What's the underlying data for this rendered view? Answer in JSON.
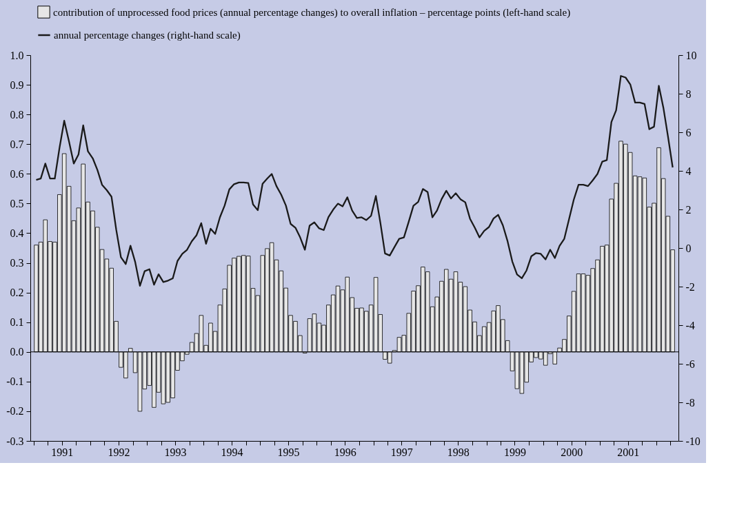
{
  "chart_data": {
    "type": "bar",
    "x": [
      "1991-01",
      "1991-02",
      "1991-03",
      "1991-04",
      "1991-05",
      "1991-06",
      "1991-07",
      "1991-08",
      "1991-09",
      "1991-10",
      "1991-11",
      "1991-12",
      "1992-01",
      "1992-02",
      "1992-03",
      "1992-04",
      "1992-05",
      "1992-06",
      "1992-07",
      "1992-08",
      "1992-09",
      "1992-10",
      "1992-11",
      "1992-12",
      "1993-01",
      "1993-02",
      "1993-03",
      "1993-04",
      "1993-05",
      "1993-06",
      "1993-07",
      "1993-08",
      "1993-09",
      "1993-10",
      "1993-11",
      "1993-12",
      "1994-01",
      "1994-02",
      "1994-03",
      "1994-04",
      "1994-05",
      "1994-06",
      "1994-07",
      "1994-08",
      "1994-09",
      "1994-10",
      "1994-11",
      "1994-12",
      "1995-01",
      "1995-02",
      "1995-03",
      "1995-04",
      "1995-05",
      "1995-06",
      "1995-07",
      "1995-08",
      "1995-09",
      "1995-10",
      "1995-11",
      "1995-12",
      "1996-01",
      "1996-02",
      "1996-03",
      "1996-04",
      "1996-05",
      "1996-06",
      "1996-07",
      "1996-08",
      "1996-09",
      "1996-10",
      "1996-11",
      "1996-12",
      "1997-01",
      "1997-02",
      "1997-03",
      "1997-04",
      "1997-05",
      "1997-06",
      "1997-07",
      "1997-08",
      "1997-09",
      "1997-10",
      "1997-11",
      "1997-12",
      "1998-01",
      "1998-02",
      "1998-03",
      "1998-04",
      "1998-05",
      "1998-06",
      "1998-07",
      "1998-08",
      "1998-09",
      "1998-10",
      "1998-11",
      "1998-12",
      "1999-01",
      "1999-02",
      "1999-03",
      "1999-04",
      "1999-05",
      "1999-06",
      "1999-07",
      "1999-08",
      "1999-09",
      "1999-10",
      "1999-11",
      "1999-12",
      "2000-01",
      "2000-02",
      "2000-03",
      "2000-04",
      "2000-05",
      "2000-06",
      "2000-07",
      "2000-08",
      "2000-09",
      "2000-10",
      "2000-11",
      "2000-12",
      "2001-01",
      "2001-02",
      "2001-03",
      "2001-04",
      "2001-05",
      "2001-06",
      "2001-07",
      "2001-08",
      "2001-09",
      "2001-10",
      "2001-11",
      "2001-12",
      "2002-01",
      "2002-02",
      "2002-03",
      "2002-04"
    ],
    "series": [
      {
        "name": "contribution of unprocessed food prices (annual percentage changes) to overall inflation – percentage points (left-hand scale)",
        "color": "#e6e6e6",
        "values": [
          0.36,
          0.37,
          0.445,
          0.372,
          0.37,
          0.53,
          0.668,
          0.558,
          0.442,
          0.485,
          0.633,
          0.505,
          0.475,
          0.42,
          0.345,
          0.313,
          0.282,
          0.103,
          -0.052,
          -0.088,
          0.012,
          -0.07,
          -0.2,
          -0.125,
          -0.113,
          -0.187,
          -0.136,
          -0.175,
          -0.17,
          -0.155,
          -0.062,
          -0.03,
          -0.008,
          0.032,
          0.062,
          0.123,
          0.022,
          0.097,
          0.069,
          0.158,
          0.212,
          0.292,
          0.316,
          0.322,
          0.325,
          0.323,
          0.214,
          0.19,
          0.325,
          0.348,
          0.368,
          0.31,
          0.273,
          0.215,
          0.123,
          0.103,
          0.055,
          -0.004,
          0.112,
          0.128,
          0.097,
          0.09,
          0.158,
          0.192,
          0.222,
          0.209,
          0.252,
          0.183,
          0.147,
          0.148,
          0.137,
          0.158,
          0.251,
          0.126,
          -0.025,
          -0.038,
          0.005,
          0.049,
          0.056,
          0.13,
          0.205,
          0.223,
          0.286,
          0.27,
          0.152,
          0.185,
          0.238,
          0.278,
          0.245,
          0.27,
          0.235,
          0.22,
          0.141,
          0.101,
          0.055,
          0.085,
          0.099,
          0.138,
          0.156,
          0.109,
          0.038,
          -0.064,
          -0.124,
          -0.14,
          -0.102,
          -0.034,
          -0.019,
          -0.024,
          -0.045,
          -0.006,
          -0.041,
          0.013,
          0.042,
          0.121,
          0.204,
          0.263,
          0.263,
          0.258,
          0.281,
          0.31,
          0.356,
          0.36,
          0.515,
          0.568,
          0.71,
          0.7,
          0.672,
          0.593,
          0.59,
          0.586,
          0.488,
          0.501,
          0.688,
          0.584,
          0.457,
          0.344
        ]
      },
      {
        "name": "annual percentage changes (right-hand scale)",
        "type": "line",
        "axis": "y2",
        "color": "#1a1a1a",
        "values": [
          3.53,
          3.6,
          4.38,
          3.6,
          3.6,
          5.19,
          6.6,
          5.52,
          4.38,
          4.85,
          6.36,
          5.01,
          4.65,
          4.05,
          3.28,
          3.0,
          2.66,
          0.95,
          -0.48,
          -0.83,
          0.12,
          -0.73,
          -1.96,
          -1.2,
          -1.1,
          -1.9,
          -1.36,
          -1.76,
          -1.69,
          -1.57,
          -0.67,
          -0.3,
          -0.09,
          0.35,
          0.66,
          1.29,
          0.22,
          1.0,
          0.73,
          1.59,
          2.2,
          3.04,
          3.31,
          3.4,
          3.4,
          3.37,
          2.26,
          1.96,
          3.33,
          3.6,
          3.84,
          3.21,
          2.77,
          2.2,
          1.25,
          1.05,
          0.55,
          -0.09,
          1.16,
          1.33,
          1.02,
          0.93,
          1.6,
          1.99,
          2.3,
          2.16,
          2.63,
          1.94,
          1.56,
          1.59,
          1.45,
          1.67,
          2.7,
          1.29,
          -0.28,
          -0.39,
          0.05,
          0.48,
          0.55,
          1.36,
          2.19,
          2.39,
          3.06,
          2.9,
          1.59,
          1.94,
          2.53,
          2.97,
          2.57,
          2.84,
          2.53,
          2.37,
          1.52,
          1.06,
          0.55,
          0.89,
          1.09,
          1.53,
          1.72,
          1.18,
          0.35,
          -0.7,
          -1.37,
          -1.57,
          -1.16,
          -0.43,
          -0.26,
          -0.3,
          -0.59,
          -0.09,
          -0.52,
          0.11,
          0.48,
          1.49,
          2.5,
          3.28,
          3.28,
          3.21,
          3.51,
          3.84,
          4.48,
          4.56,
          6.53,
          7.14,
          8.92,
          8.84,
          8.48,
          7.54,
          7.54,
          7.47,
          6.16,
          6.29,
          8.41,
          7.27,
          5.79,
          4.18
        ]
      }
    ],
    "xlim": [
      "1991-01-01",
      "2002-05-01"
    ],
    "xticks": [
      {
        "value": "1991-01",
        "label": null
      },
      {
        "value": "1991-04",
        "label": null
      },
      {
        "value": "1991-07",
        "label": "1991"
      },
      {
        "value": "1991-10",
        "label": null
      },
      {
        "value": "1992-01",
        "label": null
      },
      {
        "value": "1992-04",
        "label": null
      },
      {
        "value": "1992-07",
        "label": "1992"
      },
      {
        "value": "1992-10",
        "label": null
      },
      {
        "value": "1993-01",
        "label": null
      },
      {
        "value": "1993-04",
        "label": null
      },
      {
        "value": "1993-07",
        "label": "1993"
      },
      {
        "value": "1993-10",
        "label": null
      },
      {
        "value": "1994-01",
        "label": null
      },
      {
        "value": "1994-04",
        "label": null
      },
      {
        "value": "1994-07",
        "label": "1994"
      },
      {
        "value": "1994-10",
        "label": null
      },
      {
        "value": "1995-01",
        "label": null
      },
      {
        "value": "1995-04",
        "label": null
      },
      {
        "value": "1995-07",
        "label": "1995"
      },
      {
        "value": "1995-10",
        "label": null
      },
      {
        "value": "1996-01",
        "label": null
      },
      {
        "value": "1996-04",
        "label": null
      },
      {
        "value": "1996-07",
        "label": "1996"
      },
      {
        "value": "1996-10",
        "label": null
      },
      {
        "value": "1997-01",
        "label": null
      },
      {
        "value": "1997-04",
        "label": null
      },
      {
        "value": "1997-07",
        "label": "1997"
      },
      {
        "value": "1997-10",
        "label": null
      },
      {
        "value": "1998-01",
        "label": null
      },
      {
        "value": "1998-04",
        "label": null
      },
      {
        "value": "1998-07",
        "label": "1998"
      },
      {
        "value": "1998-10",
        "label": null
      },
      {
        "value": "1999-01",
        "label": null
      },
      {
        "value": "1999-04",
        "label": null
      },
      {
        "value": "1999-07",
        "label": "1999"
      },
      {
        "value": "1999-10",
        "label": null
      },
      {
        "value": "2000-01",
        "label": null
      },
      {
        "value": "2000-04",
        "label": null
      },
      {
        "value": "2000-07",
        "label": "2000"
      },
      {
        "value": "2000-10",
        "label": null
      },
      {
        "value": "2001-01",
        "label": null
      },
      {
        "value": "2001-04",
        "label": null
      },
      {
        "value": "2001-07",
        "label": "2001"
      },
      {
        "value": "2001-10",
        "label": null
      },
      {
        "value": "2002-01",
        "label": null
      },
      {
        "value": "2002-04",
        "label": null
      }
    ],
    "ylim": [
      -0.3,
      1.0
    ],
    "yticks": [
      -0.3,
      -0.2,
      -0.1,
      {
        "value": 0,
        "label": "0.0"
      },
      0.1,
      0.2,
      0.3,
      0.4,
      0.5,
      0.6,
      0.7,
      0.8,
      0.9,
      {
        "value": 1,
        "label": "1.0"
      }
    ],
    "y2lim": [
      -10,
      10
    ],
    "y2ticks": [
      -10,
      -8,
      -6,
      -4,
      -2,
      0,
      2,
      4,
      6,
      8,
      10
    ],
    "ref_lines": [
      {
        "axis": "y",
        "value": 0
      }
    ],
    "legend": "top left",
    "grid": false,
    "marker": "none"
  }
}
